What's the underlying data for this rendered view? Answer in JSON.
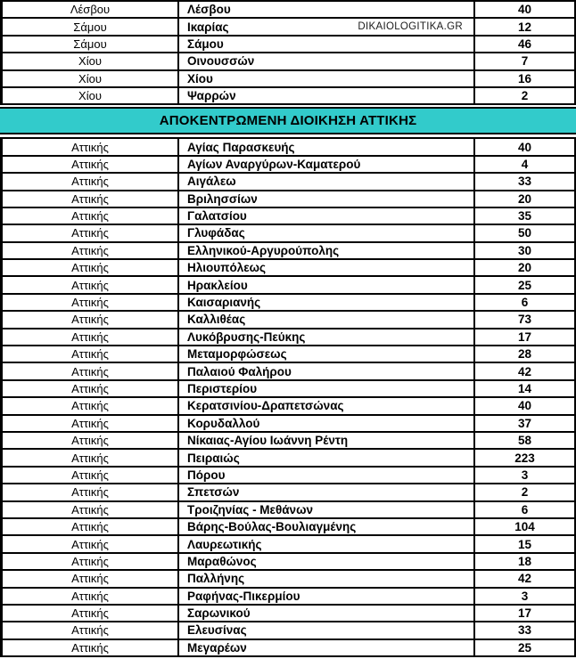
{
  "colors": {
    "section_header_bg": "#32CBCB",
    "border": "#000000",
    "row_bg": "#ffffff",
    "text": "#000000"
  },
  "document": {
    "watermark": "DIKAIOLOGITIKA.GR",
    "section_header": {
      "title": "ΑΠΟΚΕΝΤΡΩΜΕΝΗ ΔΙΟΙΚΗΣΗ ΑΤΤΙΚΗΣ"
    },
    "islands_rows": [
      {
        "region": "Λέσβου",
        "municipality": "Λέσβου",
        "count": "40"
      },
      {
        "region": "Σάμου",
        "municipality": "Ικαρίας",
        "count": "12"
      },
      {
        "region": "Σάμου",
        "municipality": "Σάμου",
        "count": "46"
      },
      {
        "region": "Χίου",
        "municipality": "Οινουσσών",
        "count": "7"
      },
      {
        "region": "Χίου",
        "municipality": "Χίου",
        "count": "16"
      },
      {
        "region": "Χίου",
        "municipality": "Ψαρρών",
        "count": "2"
      }
    ],
    "attica_rows": [
      {
        "region": "Αττικής",
        "municipality": "Αγίας Παρασκευής",
        "count": "40"
      },
      {
        "region": "Αττικής",
        "municipality": "Αγίων Αναργύρων-Καματερού",
        "count": "4"
      },
      {
        "region": "Αττικής",
        "municipality": "Αιγάλεω",
        "count": "33"
      },
      {
        "region": "Αττικής",
        "municipality": "Βριλησσίων",
        "count": "20"
      },
      {
        "region": "Αττικής",
        "municipality": "Γαλατσίου",
        "count": "35"
      },
      {
        "region": "Αττικής",
        "municipality": "Γλυφάδας",
        "count": "50"
      },
      {
        "region": "Αττικής",
        "municipality": "Ελληνικού-Αργυρούπολης",
        "count": "30"
      },
      {
        "region": "Αττικής",
        "municipality": "Ηλιουπόλεως",
        "count": "20"
      },
      {
        "region": "Αττικής",
        "municipality": "Ηρακλείου",
        "count": "25"
      },
      {
        "region": "Αττικής",
        "municipality": "Καισαριανής",
        "count": "6"
      },
      {
        "region": "Αττικής",
        "municipality": "Καλλιθέας",
        "count": "73"
      },
      {
        "region": "Αττικής",
        "municipality": "Λυκόβρυσης-Πεύκης",
        "count": "17"
      },
      {
        "region": "Αττικής",
        "municipality": "Μεταμορφώσεως",
        "count": "28"
      },
      {
        "region": "Αττικής",
        "municipality": "Παλαιού Φαλήρου",
        "count": "42"
      },
      {
        "region": "Αττικής",
        "municipality": "Περιστερίου",
        "count": "14"
      },
      {
        "region": "Αττικής",
        "municipality": "Κερατσινίου-Δραπετσώνας",
        "count": "40"
      },
      {
        "region": "Αττικής",
        "municipality": "Κορυδαλλού",
        "count": "37"
      },
      {
        "region": "Αττικής",
        "municipality": "Νίκαιας-Αγίου Ιωάννη Ρέντη",
        "count": "58"
      },
      {
        "region": "Αττικής",
        "municipality": "Πειραιώς",
        "count": "223"
      },
      {
        "region": "Αττικής",
        "municipality": "Πόρου",
        "count": "3"
      },
      {
        "region": "Αττικής",
        "municipality": "Σπετσών",
        "count": "2"
      },
      {
        "region": "Αττικής",
        "municipality": "Τροιζηνίας - Μεθάνων",
        "count": "6"
      },
      {
        "region": "Αττικής",
        "municipality": "Βάρης-Βούλας-Βουλιαγμένης",
        "count": "104"
      },
      {
        "region": "Αττικής",
        "municipality": "Λαυρεωτικής",
        "count": "15"
      },
      {
        "region": "Αττικής",
        "municipality": "Μαραθώνος",
        "count": "18"
      },
      {
        "region": "Αττικής",
        "municipality": "Παλλήνης",
        "count": "42"
      },
      {
        "region": "Αττικής",
        "municipality": "Ραφήνας-Πικερμίου",
        "count": "3"
      },
      {
        "region": "Αττικής",
        "municipality": "Σαρωνικού",
        "count": "17"
      },
      {
        "region": "Αττικής",
        "municipality": "Ελευσίνας",
        "count": "33"
      },
      {
        "region": "Αττικής",
        "municipality": "Μεγαρέων",
        "count": "25"
      }
    ]
  }
}
